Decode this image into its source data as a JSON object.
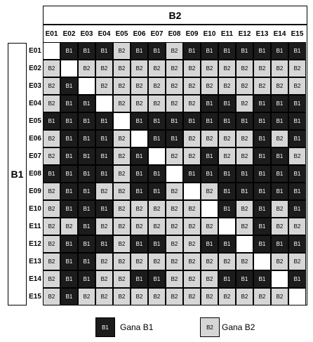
{
  "title_b2": "B2",
  "title_b1": "B1",
  "col_labels": [
    "E01",
    "E02",
    "E03",
    "E04",
    "E05",
    "E06",
    "E07",
    "E08",
    "E09",
    "E10",
    "E11",
    "E12",
    "E13",
    "E14",
    "E15"
  ],
  "row_labels": [
    "E01",
    "E02",
    "E03",
    "E04",
    "E05",
    "E06",
    "E07",
    "E08",
    "E09",
    "E10",
    "E11",
    "E12",
    "E13",
    "E14",
    "E15"
  ],
  "colors": {
    "b1_fill": "#1c1c1c",
    "b2_fill": "#d6d6d6"
  },
  "grid": [
    [
      "",
      "B1",
      "B1",
      "B1",
      "B2",
      "B1",
      "B1",
      "B2",
      "B1",
      "B1",
      "B1",
      "B1",
      "B1",
      "B1",
      "B1"
    ],
    [
      "B2",
      "",
      "B2",
      "B2",
      "B2",
      "B2",
      "B2",
      "B2",
      "B2",
      "B2",
      "B2",
      "B2",
      "B2",
      "B2",
      "B2"
    ],
    [
      "B2",
      "B1",
      "",
      "B2",
      "B2",
      "B2",
      "B2",
      "B2",
      "B2",
      "B2",
      "B2",
      "B2",
      "B2",
      "B2",
      "B2"
    ],
    [
      "B2",
      "B1",
      "B1",
      "",
      "B2",
      "B2",
      "B2",
      "B2",
      "B2",
      "B1",
      "B1",
      "B2",
      "B1",
      "B1",
      "B1"
    ],
    [
      "B1",
      "B1",
      "B1",
      "B1",
      "",
      "B1",
      "B1",
      "B1",
      "B1",
      "B1",
      "B1",
      "B1",
      "B1",
      "B1",
      "B1"
    ],
    [
      "B2",
      "B1",
      "B1",
      "B1",
      "B2",
      "",
      "B1",
      "B1",
      "B2",
      "B2",
      "B2",
      "B2",
      "B1",
      "B2",
      "B1"
    ],
    [
      "B2",
      "B1",
      "B1",
      "B1",
      "B2",
      "B1",
      "",
      "B2",
      "B2",
      "B1",
      "B2",
      "B2",
      "B1",
      "B1",
      "B2"
    ],
    [
      "B1",
      "B1",
      "B1",
      "B1",
      "B2",
      "B1",
      "B1",
      "",
      "B1",
      "B1",
      "B1",
      "B1",
      "B1",
      "B1",
      "B1"
    ],
    [
      "B2",
      "B1",
      "B1",
      "B2",
      "B2",
      "B1",
      "B1",
      "B2",
      "",
      "B2",
      "B1",
      "B1",
      "B1",
      "B1",
      "B1"
    ],
    [
      "B2",
      "B1",
      "B1",
      "B1",
      "B2",
      "B2",
      "B2",
      "B2",
      "B2",
      "",
      "B1",
      "B2",
      "B1",
      "B2",
      "B1"
    ],
    [
      "B2",
      "B2",
      "B1",
      "B2",
      "B2",
      "B2",
      "B2",
      "B2",
      "B2",
      "B2",
      "",
      "B2",
      "B1",
      "B2",
      "B2"
    ],
    [
      "B2",
      "B1",
      "B1",
      "B1",
      "B2",
      "B1",
      "B1",
      "B2",
      "B2",
      "B1",
      "B1",
      "",
      "B1",
      "B1",
      "B1"
    ],
    [
      "B2",
      "B1",
      "B1",
      "B2",
      "B2",
      "B2",
      "B2",
      "B2",
      "B2",
      "B2",
      "B2",
      "B2",
      "",
      "B2",
      "B2"
    ],
    [
      "B2",
      "B1",
      "B1",
      "B2",
      "B2",
      "B1",
      "B1",
      "B2",
      "B2",
      "B2",
      "B1",
      "B1",
      "B1",
      "",
      "B1"
    ],
    [
      "B2",
      "B1",
      "B2",
      "B2",
      "B2",
      "B2",
      "B2",
      "B2",
      "B2",
      "B2",
      "B2",
      "B2",
      "B2",
      "B2",
      ""
    ]
  ],
  "legend": [
    {
      "swatch_label": "B1",
      "text": "Gana B1"
    },
    {
      "swatch_label": "B2",
      "text": "Gana B2"
    }
  ]
}
